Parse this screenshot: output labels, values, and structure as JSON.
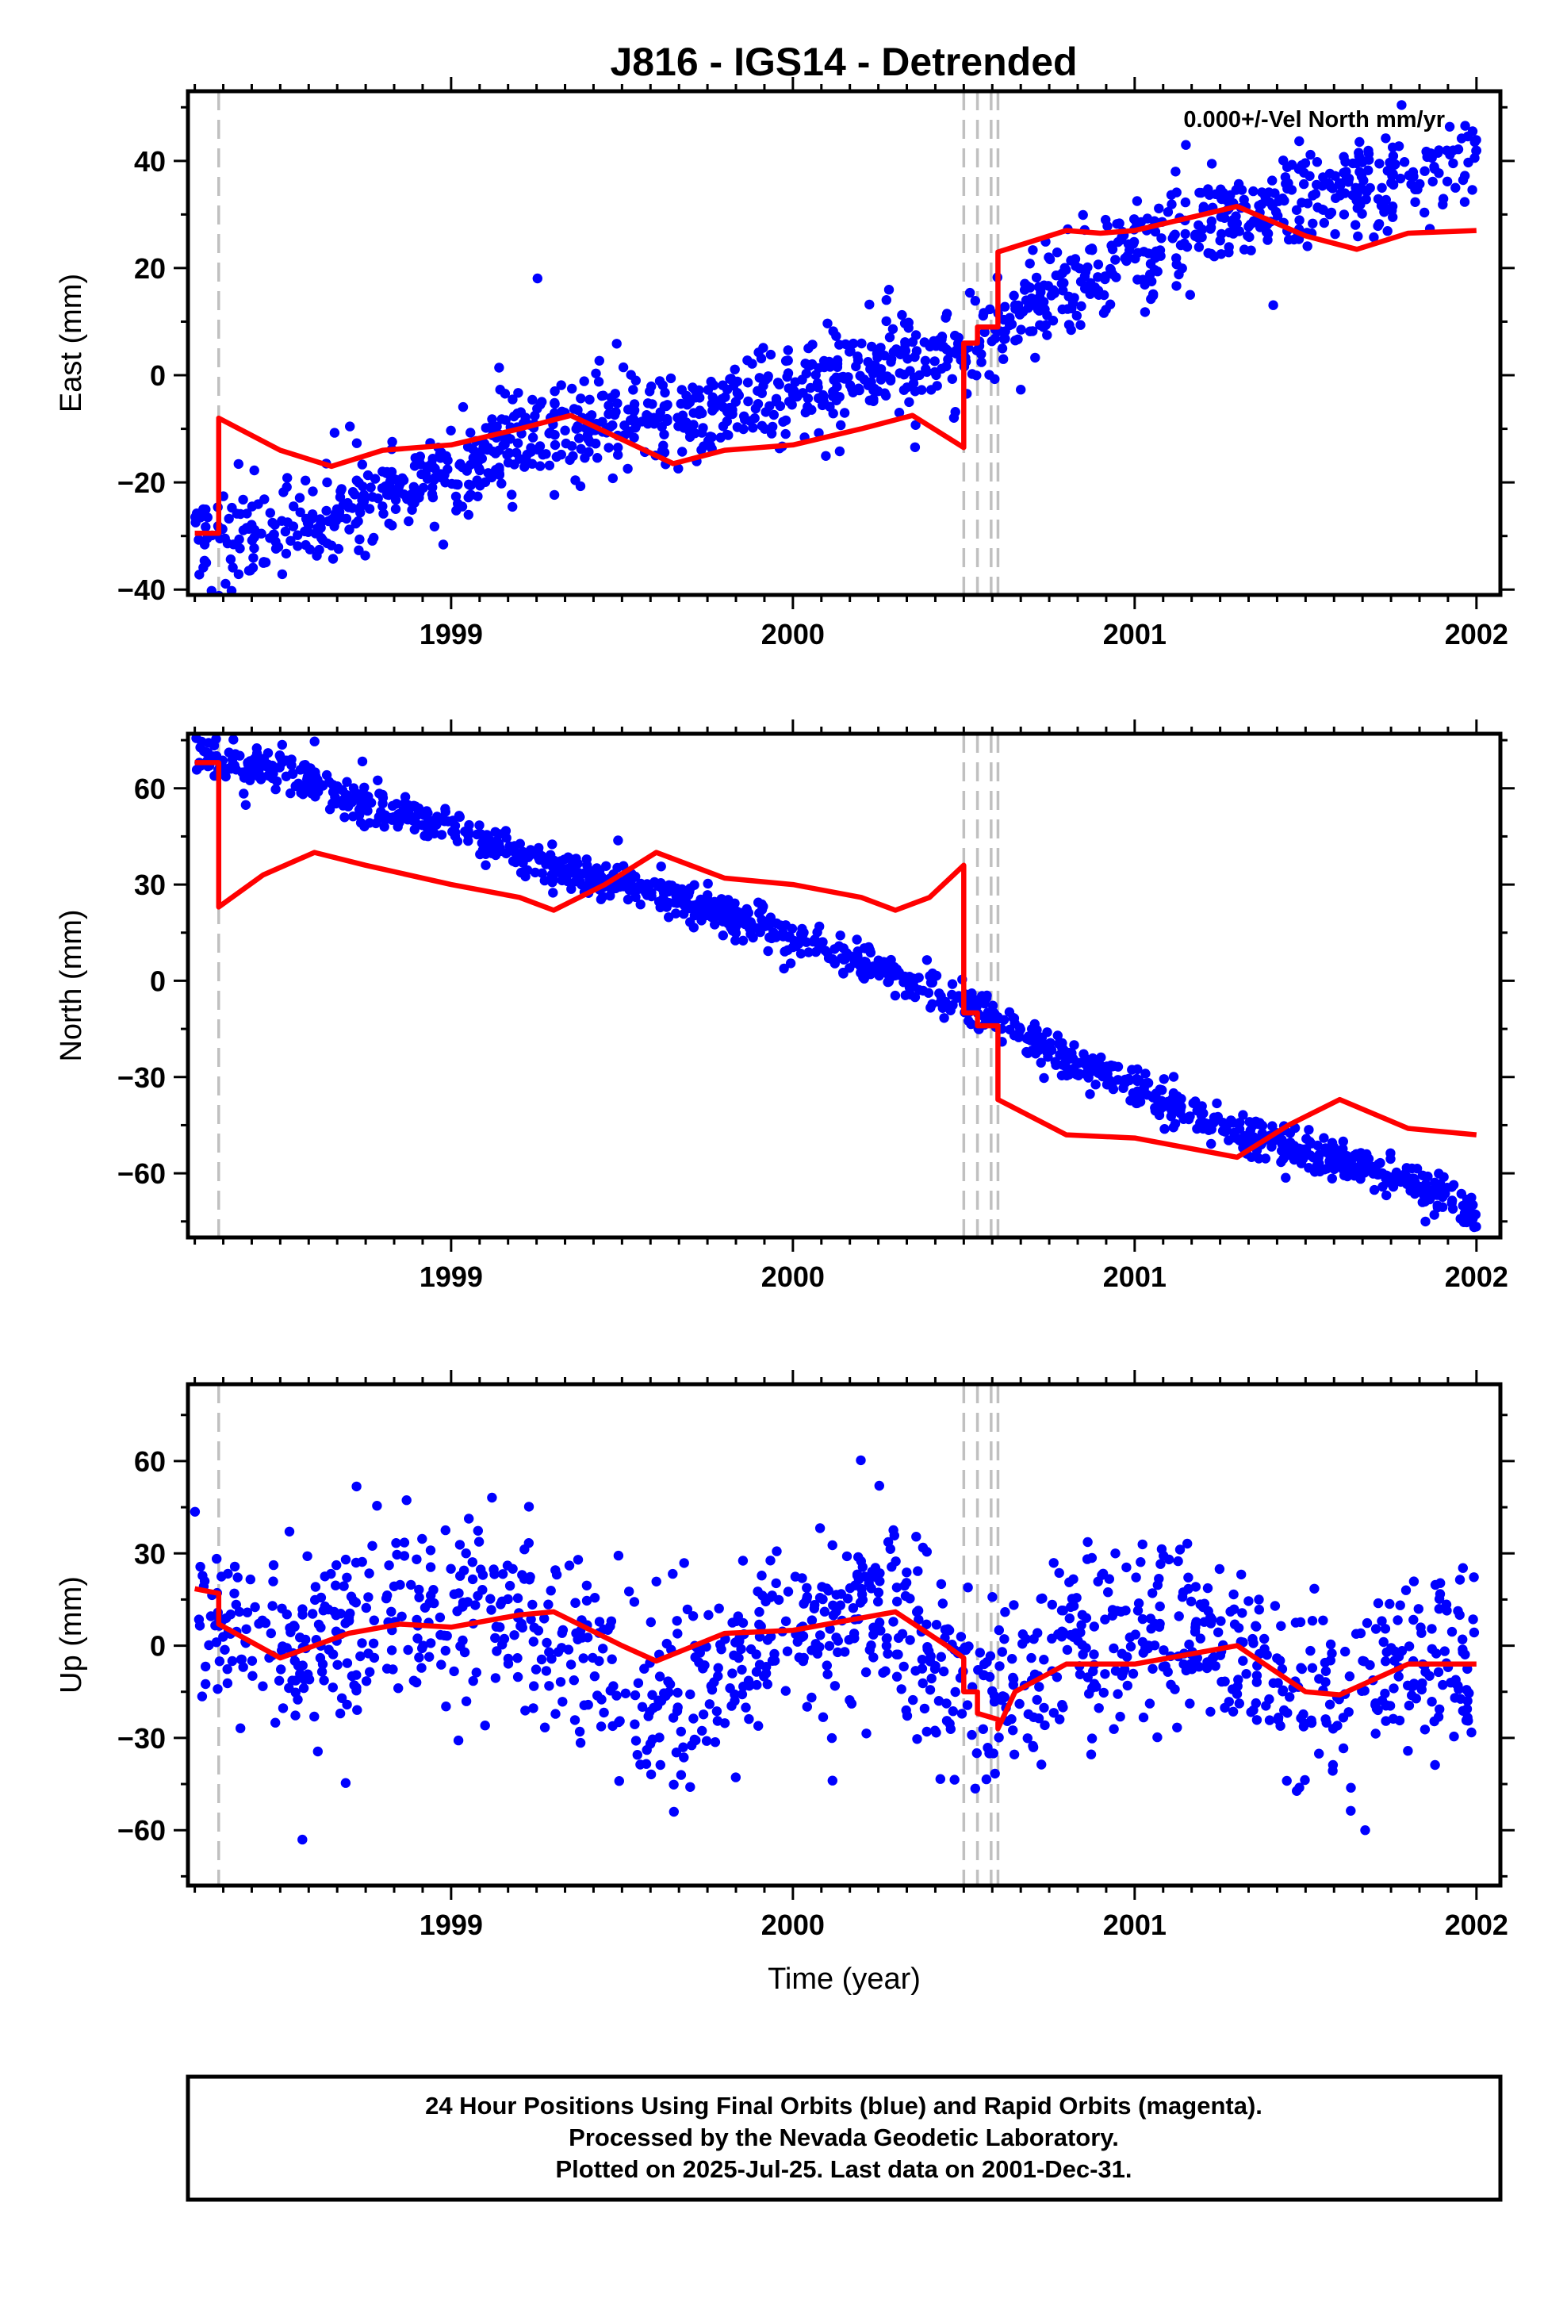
{
  "title": "J816 - IGS14 - Detrended",
  "colors": {
    "final": "#0000ff",
    "model": "#ff0000",
    "offset": "#c0c0c0"
  },
  "chart_data": [
    {
      "type": "scatter",
      "ylabel": "East (mm)",
      "note": "0.000+/-Vel North mm/yr",
      "xlim": [
        1998.23,
        2002.07
      ],
      "ylim": [
        -41,
        53
      ],
      "xticks": [
        1999,
        2000,
        2001,
        2002
      ],
      "yticks": [
        -40,
        -20,
        0,
        20,
        40
      ],
      "offsets": [
        1998.32,
        2000.5,
        2000.54,
        2000.58,
        2000.6
      ],
      "points": {
        "x_range": [
          1998.25,
          2002.0
        ],
        "trend": [
          [
            1998.25,
            -31
          ],
          [
            1998.7,
            -25
          ],
          [
            1999.3,
            -10
          ],
          [
            1999.7,
            -8
          ],
          [
            2000.2,
            0
          ],
          [
            2000.5,
            5
          ],
          [
            2000.6,
            10
          ],
          [
            2000.8,
            16
          ],
          [
            2001.2,
            28
          ],
          [
            2001.5,
            33
          ],
          [
            2001.8,
            37
          ],
          [
            2002.0,
            42
          ]
        ],
        "noise": 4.5,
        "count": 1250
      },
      "model": [
        [
          1998.25,
          -29.5
        ],
        [
          1998.32,
          -29.5
        ],
        [
          1998.32,
          -8
        ],
        [
          1998.5,
          -14
        ],
        [
          1998.65,
          -17
        ],
        [
          1998.8,
          -14
        ],
        [
          1999.0,
          -13
        ],
        [
          1999.2,
          -10
        ],
        [
          1999.35,
          -7.5
        ],
        [
          1999.5,
          -12
        ],
        [
          1999.65,
          -16.5
        ],
        [
          1999.8,
          -14
        ],
        [
          2000.0,
          -13
        ],
        [
          2000.2,
          -10
        ],
        [
          2000.35,
          -7.5
        ],
        [
          2000.5,
          -13.5
        ],
        [
          2000.5,
          6
        ],
        [
          2000.54,
          6
        ],
        [
          2000.54,
          9
        ],
        [
          2000.6,
          9
        ],
        [
          2000.6,
          23
        ],
        [
          2000.8,
          27
        ],
        [
          2000.9,
          26.5
        ],
        [
          2001.0,
          27
        ],
        [
          2001.2,
          30
        ],
        [
          2001.3,
          31.5
        ],
        [
          2001.5,
          26
        ],
        [
          2001.65,
          23.5
        ],
        [
          2001.8,
          26.5
        ],
        [
          2002.0,
          27
        ]
      ]
    },
    {
      "type": "scatter",
      "ylabel": "North (mm)",
      "xlim": [
        1998.23,
        2002.07
      ],
      "ylim": [
        -80,
        77
      ],
      "xticks": [
        1999,
        2000,
        2001,
        2002
      ],
      "yticks": [
        -60,
        -30,
        0,
        30,
        60
      ],
      "offsets": [
        1998.32,
        2000.5,
        2000.54,
        2000.58,
        2000.6
      ],
      "points": {
        "x_range": [
          1998.25,
          2002.0
        ],
        "trend": [
          [
            1998.25,
            70
          ],
          [
            1998.5,
            65
          ],
          [
            1998.75,
            55
          ],
          [
            1999.0,
            48
          ],
          [
            1999.3,
            35
          ],
          [
            1999.6,
            28
          ],
          [
            2000.0,
            14
          ],
          [
            2000.3,
            2
          ],
          [
            2000.6,
            -12
          ],
          [
            2000.8,
            -25
          ],
          [
            2001.0,
            -33
          ],
          [
            2001.3,
            -48
          ],
          [
            2001.6,
            -56
          ],
          [
            2001.8,
            -62
          ],
          [
            2002.0,
            -72
          ]
        ],
        "noise": 3.0,
        "count": 1250
      },
      "model": [
        [
          1998.25,
          68
        ],
        [
          1998.32,
          68
        ],
        [
          1998.32,
          23
        ],
        [
          1998.45,
          33
        ],
        [
          1998.6,
          40
        ],
        [
          1998.75,
          36
        ],
        [
          1999.0,
          30
        ],
        [
          1999.2,
          26
        ],
        [
          1999.3,
          22
        ],
        [
          1999.45,
          30
        ],
        [
          1999.6,
          40
        ],
        [
          1999.8,
          32
        ],
        [
          2000.0,
          30
        ],
        [
          2000.2,
          26
        ],
        [
          2000.3,
          22
        ],
        [
          2000.4,
          26
        ],
        [
          2000.5,
          36
        ],
        [
          2000.5,
          -10
        ],
        [
          2000.54,
          -10
        ],
        [
          2000.54,
          -14
        ],
        [
          2000.6,
          -14
        ],
        [
          2000.6,
          -37
        ],
        [
          2000.8,
          -48
        ],
        [
          2001.0,
          -49
        ],
        [
          2001.2,
          -53
        ],
        [
          2001.3,
          -55
        ],
        [
          2001.45,
          -45
        ],
        [
          2001.6,
          -37
        ],
        [
          2001.8,
          -46
        ],
        [
          2002.0,
          -48
        ]
      ]
    },
    {
      "type": "scatter",
      "ylabel": "Up (mm)",
      "xlabel": "Time (year)",
      "xlim": [
        1998.23,
        2002.07
      ],
      "ylim": [
        -78,
        85
      ],
      "xticks": [
        1999,
        2000,
        2001,
        2002
      ],
      "yticks": [
        -60,
        -30,
        0,
        30,
        60
      ],
      "offsets": [
        1998.32,
        2000.5,
        2000.54,
        2000.58,
        2000.6
      ],
      "points": {
        "x_range": [
          1998.25,
          2002.0
        ],
        "trend": [
          [
            1998.25,
            15
          ],
          [
            1998.5,
            -2
          ],
          [
            1998.8,
            10
          ],
          [
            1999.2,
            12
          ],
          [
            1999.6,
            -20
          ],
          [
            2000.0,
            5
          ],
          [
            2000.3,
            12
          ],
          [
            2000.55,
            -18
          ],
          [
            2000.8,
            0
          ],
          [
            2001.2,
            5
          ],
          [
            2001.5,
            -20
          ],
          [
            2001.8,
            -10
          ],
          [
            2002.0,
            -5
          ]
        ],
        "noise": 15,
        "count": 1150
      },
      "model": [
        [
          1998.25,
          18.5
        ],
        [
          1998.32,
          17
        ],
        [
          1998.32,
          7
        ],
        [
          1998.5,
          -4
        ],
        [
          1998.7,
          4
        ],
        [
          1998.85,
          7
        ],
        [
          1999.0,
          6
        ],
        [
          1999.2,
          10
        ],
        [
          1999.3,
          11
        ],
        [
          1999.5,
          0
        ],
        [
          1999.6,
          -5
        ],
        [
          1999.8,
          4
        ],
        [
          2000.0,
          5
        ],
        [
          2000.2,
          9
        ],
        [
          2000.3,
          11
        ],
        [
          2000.45,
          0
        ],
        [
          2000.5,
          -4
        ],
        [
          2000.5,
          -15
        ],
        [
          2000.54,
          -15
        ],
        [
          2000.54,
          -22
        ],
        [
          2000.6,
          -24
        ],
        [
          2000.6,
          -27
        ],
        [
          2000.65,
          -15
        ],
        [
          2000.8,
          -6
        ],
        [
          2001.0,
          -6
        ],
        [
          2001.2,
          -2
        ],
        [
          2001.3,
          0
        ],
        [
          2001.5,
          -15
        ],
        [
          2001.6,
          -16
        ],
        [
          2001.8,
          -6
        ],
        [
          2002.0,
          -6
        ]
      ]
    }
  ],
  "footer": [
    "24 Hour Positions Using Final Orbits (blue) and Rapid Orbits (magenta).",
    "Processed by the Nevada Geodetic Laboratory.",
    "Plotted on 2025-Jul-25. Last data on 2001-Dec-31."
  ]
}
